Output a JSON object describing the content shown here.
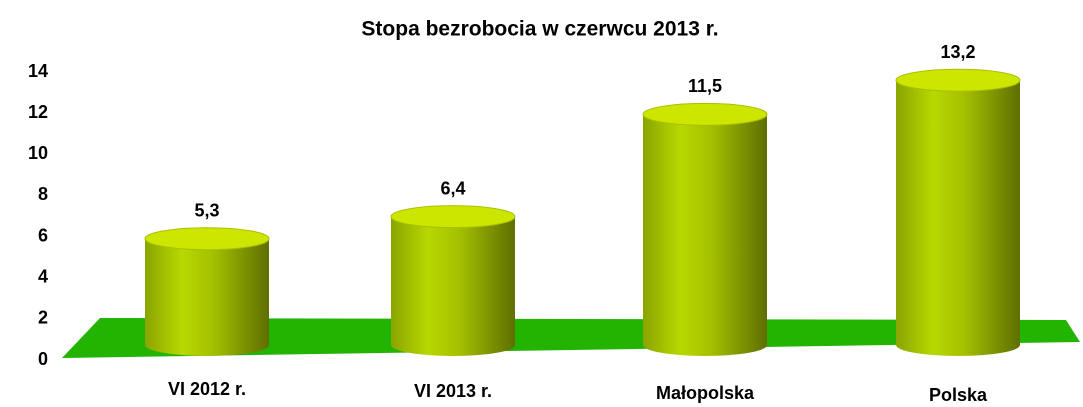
{
  "chart_data": {
    "type": "bar3d-cylinder",
    "title": "Stopa bezrobocia w czerwcu 2013 r.",
    "categories": [
      "VI 2012 r.",
      "VI 2013 r.",
      "Małopolska",
      "Polska"
    ],
    "values": [
      5.3,
      6.4,
      11.5,
      13.2
    ],
    "value_labels": [
      "5,3",
      "6,4",
      "11,5",
      "13,2"
    ],
    "color": "#a8c800",
    "floor_color": "#22b400",
    "ylim": [
      0,
      14
    ],
    "yticks": [
      0,
      2,
      4,
      6,
      8,
      10,
      12,
      14
    ],
    "grid": false
  }
}
